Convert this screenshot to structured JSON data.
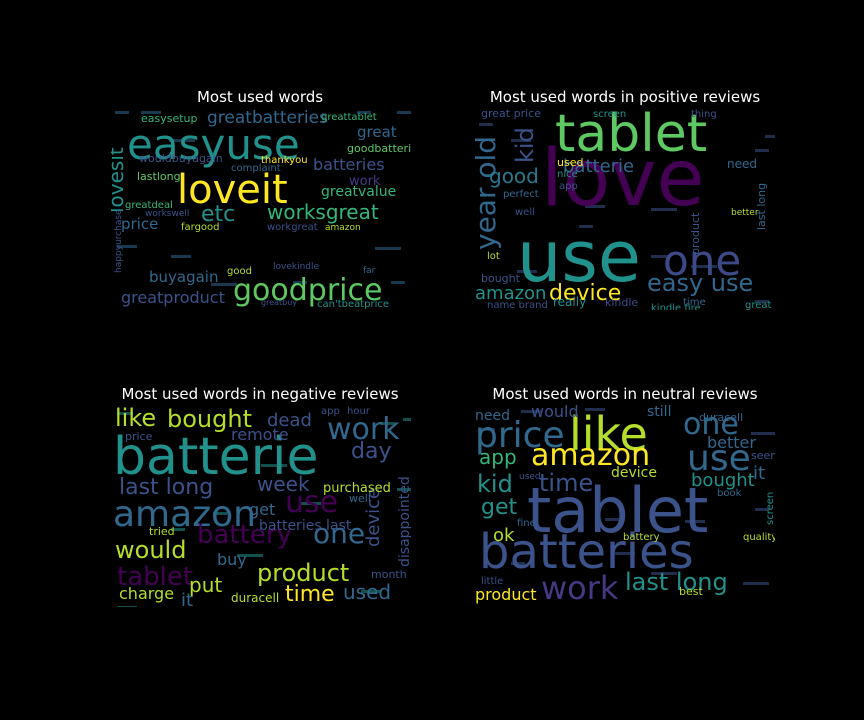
{
  "chart_data": [
    {
      "type": "wordcloud",
      "title": "Most used words",
      "words": [
        {
          "text": "greatprice",
          "c": "#21918c"
        },
        {
          "text": "easyuse",
          "c": "#21918c"
        },
        {
          "text": "loveit",
          "c": "#fde725"
        },
        {
          "text": "goodprice",
          "c": "#5ec962"
        },
        {
          "text": "etc",
          "c": "#21918c"
        },
        {
          "text": "worksgreat",
          "c": "#35b779"
        },
        {
          "text": "greatbatteries",
          "c": "#31688e"
        },
        {
          "text": "lovesit",
          "c": "#21918c"
        },
        {
          "text": "batteries",
          "c": "#3b528b"
        },
        {
          "text": "greatproduct",
          "c": "#3b528b"
        },
        {
          "text": "buyagain",
          "c": "#31688e"
        },
        {
          "text": "price",
          "c": "#31688e"
        },
        {
          "text": "great",
          "c": "#31688e"
        },
        {
          "text": "work",
          "c": "#443983"
        },
        {
          "text": "greatvalue",
          "c": "#35b779"
        },
        {
          "text": "goodbatteries",
          "c": "#5ec962"
        },
        {
          "text": "easysetup",
          "c": "#35b779"
        },
        {
          "text": "greattablet",
          "c": "#35b779"
        },
        {
          "text": "wouldbuyagain",
          "c": "#3b528b"
        },
        {
          "text": "lastlong",
          "c": "#5ec962"
        },
        {
          "text": "greatdeal",
          "c": "#35b779"
        },
        {
          "text": "thankyou",
          "c": "#fde725"
        },
        {
          "text": "complaint",
          "c": "#31688e"
        },
        {
          "text": "workgreat",
          "c": "#3b528b"
        },
        {
          "text": "fargood",
          "c": "#b5de2b"
        },
        {
          "text": "amazon",
          "c": "#b5de2b"
        },
        {
          "text": "workswell",
          "c": "#3b528b"
        },
        {
          "text": "good",
          "c": "#b5de2b"
        },
        {
          "text": "lovekindle",
          "c": "#3b528b"
        },
        {
          "text": "far",
          "c": "#31688e"
        },
        {
          "text": "can'tbeatprice",
          "c": "#21918c"
        },
        {
          "text": "greatbuy",
          "c": "#3b528b"
        },
        {
          "text": "happyurchase",
          "c": "#3b528b"
        }
      ]
    },
    {
      "type": "wordcloud",
      "title": "Most used words in positive reviews",
      "words": [
        {
          "text": "love",
          "c": "#440154"
        },
        {
          "text": "use",
          "c": "#21918c"
        },
        {
          "text": "tablet",
          "c": "#5ec962"
        },
        {
          "text": "one",
          "c": "#3e4989"
        },
        {
          "text": "year old",
          "c": "#31688e"
        },
        {
          "text": "kid",
          "c": "#3b528b"
        },
        {
          "text": "good",
          "c": "#2a788e"
        },
        {
          "text": "easy use",
          "c": "#31688e"
        },
        {
          "text": "device",
          "c": "#fde725"
        },
        {
          "text": "amazon",
          "c": "#21918c"
        },
        {
          "text": "batterie",
          "c": "#31688e"
        },
        {
          "text": "great price",
          "c": "#3b528b"
        },
        {
          "text": "need",
          "c": "#31688e"
        },
        {
          "text": "last long",
          "c": "#31688e"
        },
        {
          "text": "product",
          "c": "#3b528b"
        },
        {
          "text": "bought",
          "c": "#3b528b"
        },
        {
          "text": "lot",
          "c": "#b5de2b"
        },
        {
          "text": "really",
          "c": "#21918c"
        },
        {
          "text": "name brand",
          "c": "#3b528b"
        },
        {
          "text": "kindle",
          "c": "#3e4989"
        },
        {
          "text": "kindle fire",
          "c": "#21918c"
        },
        {
          "text": "used",
          "c": "#fde725"
        },
        {
          "text": "nice",
          "c": "#21918c"
        },
        {
          "text": "perfect",
          "c": "#31688e"
        },
        {
          "text": "screen",
          "c": "#21918c"
        },
        {
          "text": "thing",
          "c": "#3b528b"
        },
        {
          "text": "time",
          "c": "#31688e"
        },
        {
          "text": "great",
          "c": "#21918c"
        },
        {
          "text": "better",
          "c": "#b5de2b"
        },
        {
          "text": "app",
          "c": "#3b528b"
        },
        {
          "text": "well",
          "c": "#3b528b"
        }
      ]
    },
    {
      "type": "wordcloud",
      "title": "Most used words in negative reviews",
      "words": [
        {
          "text": "batterie",
          "c": "#21918c"
        },
        {
          "text": "amazon",
          "c": "#31688e"
        },
        {
          "text": "work",
          "c": "#31688e"
        },
        {
          "text": "bought",
          "c": "#b5de2b"
        },
        {
          "text": "like",
          "c": "#b5de2b"
        },
        {
          "text": "last long",
          "c": "#3b528b"
        },
        {
          "text": "use",
          "c": "#440154"
        },
        {
          "text": "one",
          "c": "#31688e"
        },
        {
          "text": "battery",
          "c": "#440154"
        },
        {
          "text": "would",
          "c": "#b5de2b"
        },
        {
          "text": "product",
          "c": "#b5de2b"
        },
        {
          "text": "tablet",
          "c": "#440154"
        },
        {
          "text": "time",
          "c": "#fde725"
        },
        {
          "text": "used",
          "c": "#31688e"
        },
        {
          "text": "day",
          "c": "#3b528b"
        },
        {
          "text": "week",
          "c": "#3b528b"
        },
        {
          "text": "dead",
          "c": "#3b528b"
        },
        {
          "text": "remote",
          "c": "#3b528b"
        },
        {
          "text": "get",
          "c": "#31688e"
        },
        {
          "text": "device",
          "c": "#3b528b"
        },
        {
          "text": "disappointed",
          "c": "#3b528b"
        },
        {
          "text": "buy",
          "c": "#31688e"
        },
        {
          "text": "put",
          "c": "#b5de2b"
        },
        {
          "text": "charge",
          "c": "#b5de2b"
        },
        {
          "text": "it",
          "c": "#31688e"
        },
        {
          "text": "batteries last",
          "c": "#3b528b"
        },
        {
          "text": "purchased",
          "c": "#b5de2b"
        },
        {
          "text": "duracell",
          "c": "#b5de2b"
        },
        {
          "text": "tried",
          "c": "#b5de2b"
        },
        {
          "text": "price",
          "c": "#3b528b"
        },
        {
          "text": "month",
          "c": "#3b528b"
        },
        {
          "text": "well",
          "c": "#31688e"
        },
        {
          "text": "app",
          "c": "#3b528b"
        },
        {
          "text": "hour",
          "c": "#3b528b"
        }
      ]
    },
    {
      "type": "wordcloud",
      "title": "Most used words in neutral reviews",
      "words": [
        {
          "text": "tablet",
          "c": "#3b528b"
        },
        {
          "text": "batteries",
          "c": "#3b528b"
        },
        {
          "text": "price",
          "c": "#31688e"
        },
        {
          "text": "like",
          "c": "#b5de2b"
        },
        {
          "text": "one",
          "c": "#31688e"
        },
        {
          "text": "amazon",
          "c": "#fde725"
        },
        {
          "text": "use",
          "c": "#31688e"
        },
        {
          "text": "work",
          "c": "#443983"
        },
        {
          "text": "last long",
          "c": "#21918c"
        },
        {
          "text": "time",
          "c": "#3b528b"
        },
        {
          "text": "kid",
          "c": "#21918c"
        },
        {
          "text": "get",
          "c": "#21918c"
        },
        {
          "text": "app",
          "c": "#35b779"
        },
        {
          "text": "would",
          "c": "#3b528b"
        },
        {
          "text": "bought",
          "c": "#21918c"
        },
        {
          "text": "better",
          "c": "#31688e"
        },
        {
          "text": "device",
          "c": "#b5de2b"
        },
        {
          "text": "need",
          "c": "#31688e"
        },
        {
          "text": "still",
          "c": "#31688e"
        },
        {
          "text": "product",
          "c": "#fde725"
        },
        {
          "text": "it",
          "c": "#31688e"
        },
        {
          "text": "ok",
          "c": "#b5de2b"
        },
        {
          "text": "duracell",
          "c": "#31688e"
        },
        {
          "text": "best",
          "c": "#b5de2b"
        },
        {
          "text": "battery",
          "c": "#b5de2b"
        },
        {
          "text": "seem",
          "c": "#3b528b"
        },
        {
          "text": "book",
          "c": "#31688e"
        },
        {
          "text": "used",
          "c": "#3b528b"
        },
        {
          "text": "fine",
          "c": "#31688e"
        },
        {
          "text": "little",
          "c": "#3b528b"
        },
        {
          "text": "quality",
          "c": "#b5de2b"
        },
        {
          "text": "screen",
          "c": "#21918c"
        }
      ]
    }
  ]
}
